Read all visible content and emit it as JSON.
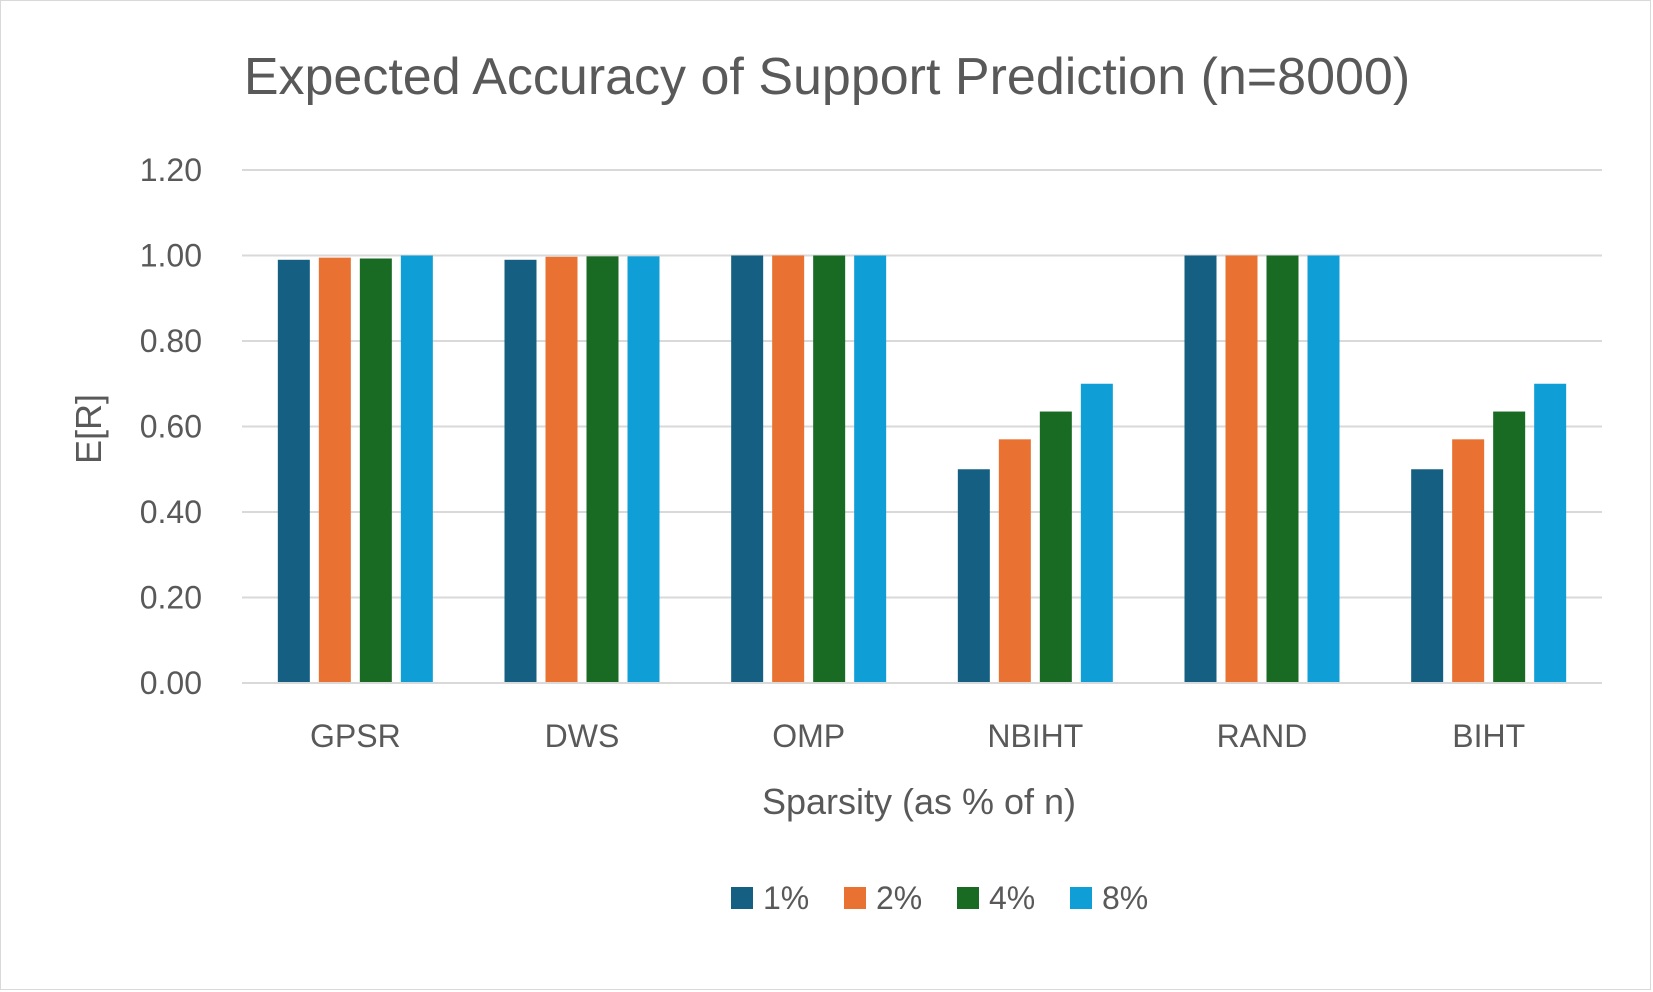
{
  "chart_data": {
    "type": "bar",
    "title": "Expected Accuracy of Support Prediction (n=8000)",
    "xlabel": "Sparsity (as % of n)",
    "ylabel": "E[R]",
    "ylim": [
      0,
      1.2
    ],
    "yticks": [
      "0.00",
      "0.20",
      "0.40",
      "0.60",
      "0.80",
      "1.00",
      "1.20"
    ],
    "grid": true,
    "legend_position": "bottom",
    "categories": [
      "GPSR",
      "DWS",
      "OMP",
      "NBIHT",
      "RAND",
      "BIHT"
    ],
    "series": [
      {
        "name": "1%",
        "color": "#156082",
        "values": [
          0.99,
          0.99,
          1.0,
          0.5,
          1.0,
          0.5
        ]
      },
      {
        "name": "2%",
        "color": "#E97132",
        "values": [
          0.995,
          0.997,
          1.0,
          0.57,
          1.0,
          0.57
        ]
      },
      {
        "name": "4%",
        "color": "#196B24",
        "values": [
          0.993,
          0.998,
          1.0,
          0.635,
          1.0,
          0.635
        ]
      },
      {
        "name": "8%",
        "color": "#0F9ED5",
        "values": [
          1.0,
          0.998,
          1.0,
          0.7,
          1.0,
          0.7
        ]
      }
    ]
  }
}
